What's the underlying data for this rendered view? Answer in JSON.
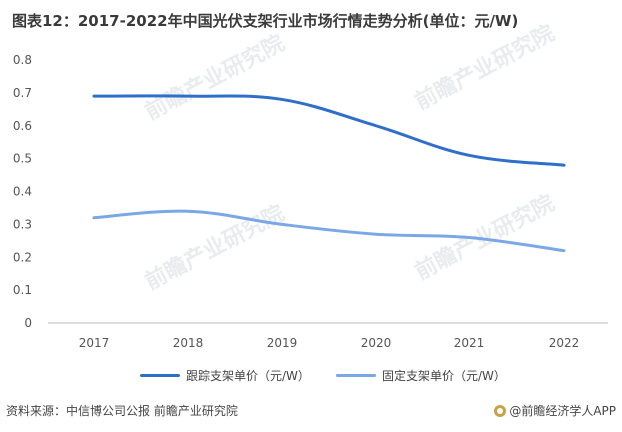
{
  "title": "图表12：2017-2022年中国光伏支架行业市场行情走势分析(单位：元/W)",
  "colors": {
    "tracking": "#2f6fc9",
    "fixed": "#7aa8e6",
    "axis": "#bfbfbf"
  },
  "watermark_text": "前瞻产业研究院",
  "chart_data": {
    "type": "line",
    "x": [
      "2017",
      "2018",
      "2019",
      "2020",
      "2021",
      "2022"
    ],
    "ylim": [
      0,
      0.8
    ],
    "yticks": [
      "0",
      "0.1",
      "0.2",
      "0.3",
      "0.4",
      "0.5",
      "0.6",
      "0.7",
      "0.8"
    ],
    "grid": false,
    "legend_position": "bottom",
    "series": [
      {
        "name": "跟踪支架单价（元/W）",
        "values": [
          0.69,
          0.69,
          0.68,
          0.6,
          0.51,
          0.48
        ]
      },
      {
        "name": "固定支架单价（元/W）",
        "values": [
          0.32,
          0.34,
          0.3,
          0.27,
          0.26,
          0.22
        ]
      }
    ]
  },
  "legend": {
    "tracking_label": "跟踪支架单价（元/W）",
    "fixed_label": "固定支架单价（元/W）"
  },
  "footer": {
    "source": "资料来源：中信博公司公报 前瞻产业研究院",
    "brand": "@前瞻经济学人APP"
  }
}
